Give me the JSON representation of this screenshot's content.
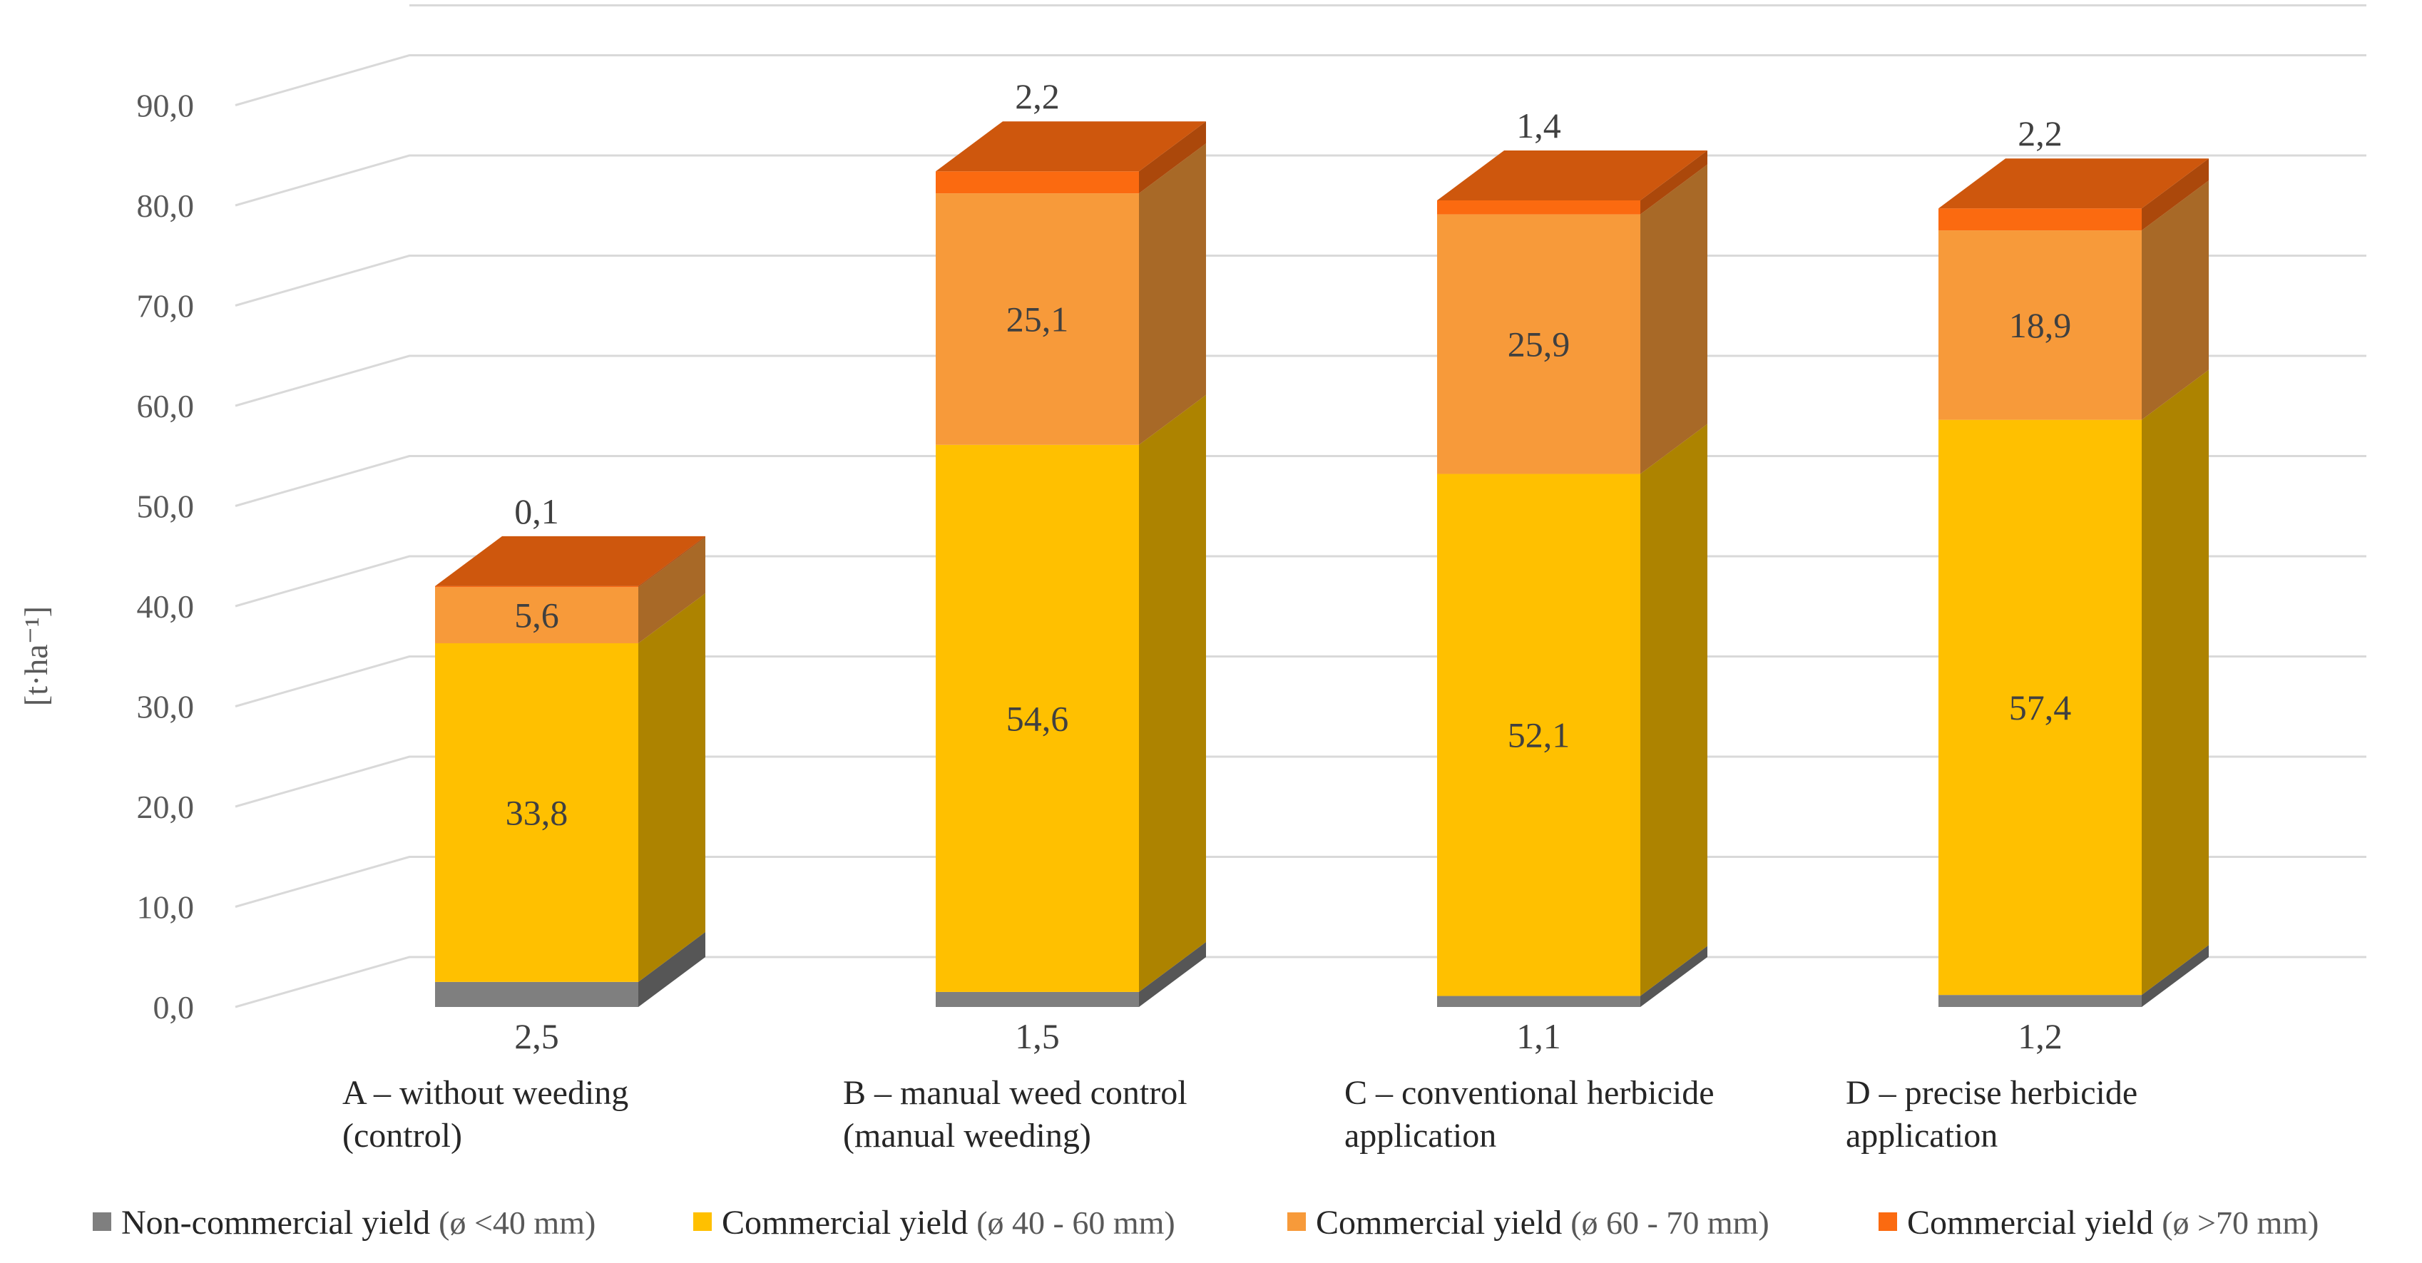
{
  "chart_data": {
    "type": "bar",
    "stacked": true,
    "style": "3d-column",
    "ylabel": "[t·ha⁻¹]",
    "ylim": [
      0,
      90
    ],
    "ytick_step": 10,
    "ytick_labels": [
      "0,0",
      "10,0",
      "20,0",
      "30,0",
      "40,0",
      "50,0",
      "60,0",
      "70,0",
      "80,0",
      "90,0"
    ],
    "grid": true,
    "legend_position": "bottom",
    "categories": [
      [
        "A – without weeding",
        "(control)"
      ],
      [
        "B – manual weed control",
        "(manual weeding)"
      ],
      [
        "C – conventional herbicide",
        "application"
      ],
      [
        "D – precise herbicide",
        "application"
      ]
    ],
    "series": [
      {
        "name": "Non-commercial yield",
        "qualifier": "(ø <40 mm)",
        "color": "#7f7f7f",
        "values": [
          2.5,
          1.5,
          1.1,
          1.2
        ],
        "labels": [
          "2,5",
          "1,5",
          "1,1",
          "1,2"
        ]
      },
      {
        "name": "Commercial yield",
        "qualifier": "(ø 40 - 60 mm)",
        "color": "#ffc000",
        "values": [
          33.8,
          54.6,
          52.1,
          57.4
        ],
        "labels": [
          "33,8",
          "54,6",
          "52,1",
          "57,4"
        ]
      },
      {
        "name": "Commercial yield",
        "qualifier": "(ø 60 - 70 mm)",
        "color": "#f79a3a",
        "values": [
          5.6,
          25.1,
          25.9,
          18.9
        ],
        "labels": [
          "5,6",
          "25,1",
          "25,9",
          "18,9"
        ]
      },
      {
        "name": "Commercial yield",
        "qualifier": "(ø >70 mm)",
        "color": "#fb6a10",
        "values": [
          0.1,
          2.2,
          1.4,
          2.2
        ],
        "labels": [
          "0,1",
          "2,2",
          "1,4",
          "2,2"
        ]
      }
    ]
  }
}
